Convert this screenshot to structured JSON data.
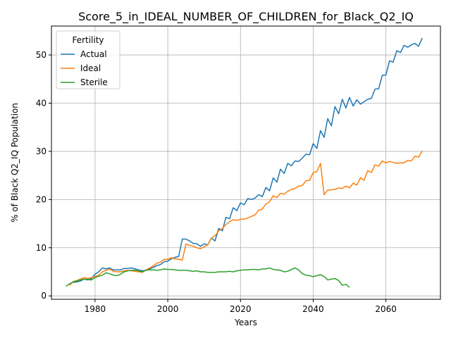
{
  "chart_data": {
    "type": "line",
    "title": "Score_5_in_IDEAL_NUMBER_OF_CHILDREN_for_Black_Q2_IQ",
    "xlabel": "Years",
    "ylabel": "% of Black Q2_IQ Population",
    "xlim": [
      1968,
      2075
    ],
    "ylim": [
      -0.7,
      56
    ],
    "xticks": [
      1980,
      2000,
      2020,
      2040,
      2060
    ],
    "yticks": [
      0,
      10,
      20,
      30,
      40,
      50
    ],
    "grid": true,
    "legend": {
      "title": "Fertility",
      "placement": "top-left"
    },
    "series": [
      {
        "name": "Actual",
        "color": "#1f77b4",
        "points": [
          [
            1974,
            2.8
          ],
          [
            1975,
            2.9
          ],
          [
            1976,
            3.1
          ],
          [
            1977,
            3.5
          ],
          [
            1978,
            3.3
          ],
          [
            1979,
            3.6
          ],
          [
            1980,
            4.5
          ],
          [
            1981,
            5.0
          ],
          [
            1982,
            5.8
          ],
          [
            1983,
            5.6
          ],
          [
            1984,
            5.8
          ],
          [
            1985,
            5.4
          ],
          [
            1986,
            5.4
          ],
          [
            1987,
            5.4
          ],
          [
            1988,
            5.7
          ],
          [
            1989,
            5.7
          ],
          [
            1990,
            5.8
          ],
          [
            1991,
            5.6
          ],
          [
            1992,
            5.4
          ],
          [
            1993,
            5.2
          ],
          [
            1994,
            5.3
          ],
          [
            1995,
            5.6
          ],
          [
            1996,
            5.9
          ],
          [
            1997,
            6.3
          ],
          [
            1998,
            6.5
          ],
          [
            1999,
            7.1
          ],
          [
            2000,
            7.2
          ],
          [
            2001,
            7.7
          ],
          [
            2002,
            8.0
          ],
          [
            2003,
            8.2
          ],
          [
            2004,
            11.8
          ],
          [
            2005,
            11.8
          ],
          [
            2006,
            11.4
          ],
          [
            2007,
            10.9
          ],
          [
            2008,
            10.8
          ],
          [
            2009,
            10.3
          ],
          [
            2010,
            10.8
          ],
          [
            2011,
            10.6
          ],
          [
            2012,
            12.0
          ],
          [
            2013,
            11.4
          ],
          [
            2014,
            14.0
          ],
          [
            2015,
            13.5
          ],
          [
            2016,
            16.3
          ],
          [
            2017,
            16.0
          ],
          [
            2018,
            18.3
          ],
          [
            2019,
            17.7
          ],
          [
            2020,
            19.3
          ],
          [
            2021,
            18.9
          ],
          [
            2022,
            20.2
          ],
          [
            2023,
            20.0
          ],
          [
            2024,
            20.3
          ],
          [
            2025,
            21.0
          ],
          [
            2026,
            20.6
          ],
          [
            2027,
            22.5
          ],
          [
            2028,
            21.8
          ],
          [
            2029,
            24.5
          ],
          [
            2030,
            23.6
          ],
          [
            2031,
            26.3
          ],
          [
            2032,
            25.4
          ],
          [
            2033,
            27.5
          ],
          [
            2034,
            27.0
          ],
          [
            2035,
            28.0
          ],
          [
            2036,
            27.9
          ],
          [
            2037,
            28.6
          ],
          [
            2038,
            29.4
          ],
          [
            2039,
            29.3
          ],
          [
            2040,
            31.6
          ],
          [
            2041,
            30.6
          ],
          [
            2042,
            34.3
          ],
          [
            2043,
            32.9
          ],
          [
            2044,
            36.8
          ],
          [
            2045,
            35.3
          ],
          [
            2046,
            39.3
          ],
          [
            2047,
            37.8
          ],
          [
            2048,
            40.8
          ],
          [
            2049,
            39.0
          ],
          [
            2050,
            41.2
          ],
          [
            2051,
            39.4
          ],
          [
            2052,
            40.7
          ],
          [
            2053,
            39.8
          ],
          [
            2054,
            40.3
          ],
          [
            2055,
            40.8
          ],
          [
            2056,
            41.0
          ],
          [
            2057,
            42.9
          ],
          [
            2058,
            43.0
          ],
          [
            2059,
            45.8
          ],
          [
            2060,
            45.8
          ],
          [
            2061,
            48.8
          ],
          [
            2062,
            48.5
          ],
          [
            2063,
            50.9
          ],
          [
            2064,
            50.5
          ],
          [
            2065,
            52.0
          ],
          [
            2066,
            51.6
          ],
          [
            2067,
            52.1
          ],
          [
            2068,
            52.4
          ],
          [
            2069,
            51.8
          ],
          [
            2070,
            53.5
          ]
        ]
      },
      {
        "name": "Ideal",
        "color": "#ff7f0e",
        "points": [
          [
            1973,
            2.2
          ],
          [
            1974,
            3.0
          ],
          [
            1975,
            3.2
          ],
          [
            1976,
            3.5
          ],
          [
            1977,
            3.8
          ],
          [
            1978,
            3.6
          ],
          [
            1979,
            3.8
          ],
          [
            1980,
            4.0
          ],
          [
            1981,
            4.3
          ],
          [
            1982,
            5.0
          ],
          [
            1983,
            5.3
          ],
          [
            1984,
            5.6
          ],
          [
            1985,
            5.1
          ],
          [
            1986,
            5.0
          ],
          [
            1987,
            5.0
          ],
          [
            1988,
            5.2
          ],
          [
            1989,
            5.3
          ],
          [
            1990,
            5.2
          ],
          [
            1991,
            5.1
          ],
          [
            1992,
            5.0
          ],
          [
            1993,
            4.9
          ],
          [
            1994,
            5.4
          ],
          [
            1995,
            5.8
          ],
          [
            1996,
            6.2
          ],
          [
            1997,
            6.8
          ],
          [
            1998,
            7.0
          ],
          [
            1999,
            7.6
          ],
          [
            2000,
            7.6
          ],
          [
            2001,
            7.9
          ],
          [
            2002,
            7.7
          ],
          [
            2003,
            7.6
          ],
          [
            2004,
            7.4
          ],
          [
            2005,
            10.8
          ],
          [
            2006,
            10.5
          ],
          [
            2007,
            10.3
          ],
          [
            2008,
            10.0
          ],
          [
            2009,
            9.8
          ],
          [
            2010,
            10.2
          ],
          [
            2011,
            10.6
          ],
          [
            2012,
            12.0
          ],
          [
            2013,
            12.5
          ],
          [
            2014,
            13.5
          ],
          [
            2015,
            14.0
          ],
          [
            2016,
            14.8
          ],
          [
            2017,
            15.4
          ],
          [
            2018,
            15.8
          ],
          [
            2019,
            15.7
          ],
          [
            2020,
            15.9
          ],
          [
            2021,
            15.9
          ],
          [
            2022,
            16.2
          ],
          [
            2023,
            16.5
          ],
          [
            2024,
            16.8
          ],
          [
            2025,
            17.8
          ],
          [
            2026,
            18.0
          ],
          [
            2027,
            19.1
          ],
          [
            2028,
            19.5
          ],
          [
            2029,
            20.8
          ],
          [
            2030,
            20.4
          ],
          [
            2031,
            21.3
          ],
          [
            2032,
            21.1
          ],
          [
            2033,
            21.7
          ],
          [
            2034,
            22.1
          ],
          [
            2035,
            22.3
          ],
          [
            2036,
            22.8
          ],
          [
            2037,
            22.9
          ],
          [
            2038,
            23.9
          ],
          [
            2039,
            24.0
          ],
          [
            2040,
            25.6
          ],
          [
            2041,
            25.8
          ],
          [
            2042,
            27.5
          ],
          [
            2043,
            21.0
          ],
          [
            2044,
            22.0
          ],
          [
            2045,
            22.0
          ],
          [
            2046,
            22.1
          ],
          [
            2047,
            22.4
          ],
          [
            2048,
            22.3
          ],
          [
            2049,
            22.8
          ],
          [
            2050,
            22.4
          ],
          [
            2051,
            23.4
          ],
          [
            2052,
            23.0
          ],
          [
            2053,
            24.5
          ],
          [
            2054,
            24.0
          ],
          [
            2055,
            26.0
          ],
          [
            2056,
            25.6
          ],
          [
            2057,
            27.2
          ],
          [
            2058,
            26.9
          ],
          [
            2059,
            28.0
          ],
          [
            2060,
            27.6
          ],
          [
            2061,
            27.9
          ],
          [
            2062,
            27.7
          ],
          [
            2063,
            27.5
          ],
          [
            2064,
            27.6
          ],
          [
            2065,
            27.6
          ],
          [
            2066,
            28.1
          ],
          [
            2067,
            28.0
          ],
          [
            2068,
            29.0
          ],
          [
            2069,
            28.8
          ],
          [
            2070,
            30.1
          ]
        ]
      },
      {
        "name": "Sterile",
        "color": "#2ca02c",
        "points": [
          [
            1972,
            2.0
          ],
          [
            1973,
            2.5
          ],
          [
            1974,
            2.9
          ],
          [
            1975,
            3.1
          ],
          [
            1976,
            3.3
          ],
          [
            1977,
            3.5
          ],
          [
            1978,
            3.4
          ],
          [
            1979,
            3.3
          ],
          [
            1980,
            3.8
          ],
          [
            1981,
            4.1
          ],
          [
            1982,
            4.3
          ],
          [
            1983,
            4.8
          ],
          [
            1984,
            4.6
          ],
          [
            1985,
            4.3
          ],
          [
            1986,
            4.2
          ],
          [
            1987,
            4.5
          ],
          [
            1988,
            5.0
          ],
          [
            1989,
            5.2
          ],
          [
            1990,
            5.3
          ],
          [
            1991,
            5.3
          ],
          [
            1992,
            5.2
          ],
          [
            1993,
            5.0
          ],
          [
            1994,
            5.3
          ],
          [
            1995,
            5.4
          ],
          [
            1996,
            5.4
          ],
          [
            1997,
            5.3
          ],
          [
            1998,
            5.4
          ],
          [
            1999,
            5.6
          ],
          [
            2000,
            5.5
          ],
          [
            2001,
            5.5
          ],
          [
            2002,
            5.4
          ],
          [
            2003,
            5.3
          ],
          [
            2004,
            5.3
          ],
          [
            2005,
            5.3
          ],
          [
            2006,
            5.2
          ],
          [
            2007,
            5.1
          ],
          [
            2008,
            5.2
          ],
          [
            2009,
            5.0
          ],
          [
            2010,
            5.0
          ],
          [
            2011,
            4.9
          ],
          [
            2012,
            4.9
          ],
          [
            2013,
            4.9
          ],
          [
            2014,
            5.0
          ],
          [
            2015,
            5.0
          ],
          [
            2016,
            5.0
          ],
          [
            2017,
            5.1
          ],
          [
            2018,
            5.0
          ],
          [
            2019,
            5.2
          ],
          [
            2020,
            5.3
          ],
          [
            2021,
            5.4
          ],
          [
            2022,
            5.4
          ],
          [
            2023,
            5.5
          ],
          [
            2024,
            5.5
          ],
          [
            2025,
            5.4
          ],
          [
            2026,
            5.6
          ],
          [
            2027,
            5.6
          ],
          [
            2028,
            5.8
          ],
          [
            2029,
            5.5
          ],
          [
            2030,
            5.4
          ],
          [
            2031,
            5.3
          ],
          [
            2032,
            5.0
          ],
          [
            2033,
            5.1
          ],
          [
            2034,
            5.5
          ],
          [
            2035,
            5.8
          ],
          [
            2036,
            5.4
          ],
          [
            2037,
            4.6
          ],
          [
            2038,
            4.3
          ],
          [
            2039,
            4.2
          ],
          [
            2040,
            4.0
          ],
          [
            2041,
            4.2
          ],
          [
            2042,
            4.4
          ],
          [
            2043,
            4.0
          ],
          [
            2044,
            3.3
          ],
          [
            2045,
            3.5
          ],
          [
            2046,
            3.6
          ],
          [
            2047,
            3.2
          ],
          [
            2048,
            2.2
          ],
          [
            2049,
            2.4
          ],
          [
            2050,
            1.8
          ]
        ]
      }
    ]
  }
}
